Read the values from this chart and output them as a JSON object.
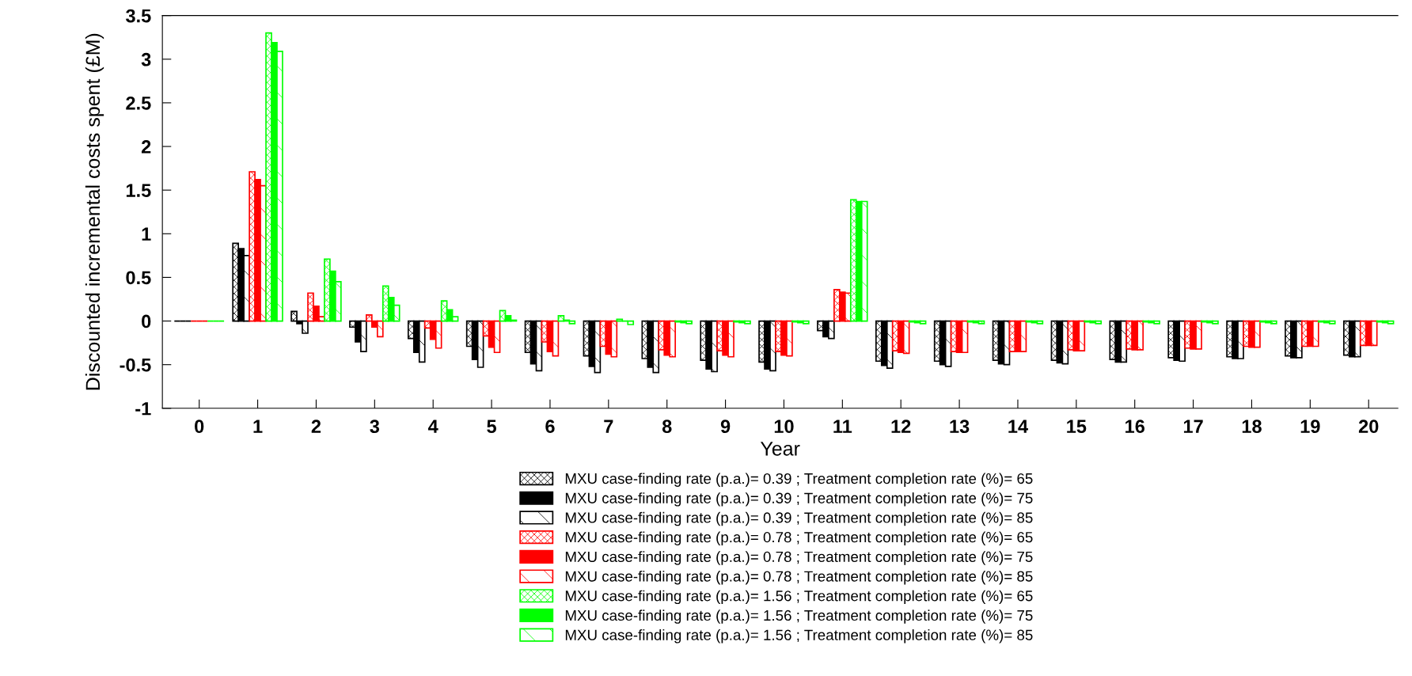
{
  "chart_data": {
    "type": "bar",
    "xlabel": "Year",
    "ylabel": "Discounted incremental costs spent (£M)",
    "categories": [
      "0",
      "1",
      "2",
      "3",
      "4",
      "5",
      "6",
      "7",
      "8",
      "9",
      "10",
      "11",
      "12",
      "13",
      "14",
      "15",
      "16",
      "17",
      "18",
      "19",
      "20"
    ],
    "ylim": [
      -1,
      3.5
    ],
    "yticks": [
      {
        "value": -1,
        "label": "-1"
      },
      {
        "value": -0.5,
        "label": "-0.5"
      },
      0,
      0.5,
      1,
      1.5,
      2,
      2.5,
      3,
      3.5
    ],
    "grid": false,
    "legend": "bottom",
    "series": [
      {
        "name": "MXU case-finding rate (p.a.)= 0.39 ; Treatment completion rate (%)= 65",
        "color": "#000000",
        "values": [
          0,
          0.89,
          0.11,
          -0.07,
          -0.2,
          -0.29,
          -0.36,
          -0.4,
          -0.43,
          -0.45,
          -0.47,
          -0.11,
          -0.46,
          -0.46,
          -0.45,
          -0.45,
          -0.44,
          -0.42,
          -0.41,
          -0.4,
          -0.39
        ]
      },
      {
        "name": "MXU case-finding rate (p.a.)= 0.39 ; Treatment completion rate (%)= 75",
        "color": "#000000",
        "values": [
          0,
          0.83,
          -0.03,
          -0.24,
          -0.36,
          -0.44,
          -0.49,
          -0.52,
          -0.53,
          -0.55,
          -0.55,
          -0.18,
          -0.51,
          -0.5,
          -0.49,
          -0.48,
          -0.47,
          -0.45,
          -0.43,
          -0.42,
          -0.41
        ]
      },
      {
        "name": "MXU case-finding rate (p.a.)= 0.39 ; Treatment completion rate (%)= 85",
        "color": "#000000",
        "values": [
          0,
          0.75,
          -0.14,
          -0.35,
          -0.47,
          -0.53,
          -0.57,
          -0.59,
          -0.59,
          -0.58,
          -0.57,
          -0.2,
          -0.54,
          -0.52,
          -0.5,
          -0.49,
          -0.47,
          -0.46,
          -0.43,
          -0.42,
          -0.41
        ]
      },
      {
        "name": "MXU case-finding rate (p.a.)= 0.78 ; Treatment completion rate (%)= 65",
        "color": "#ff0000",
        "values": [
          0,
          1.71,
          0.32,
          0.07,
          -0.08,
          -0.17,
          -0.24,
          -0.29,
          -0.33,
          -0.34,
          -0.35,
          0.36,
          -0.34,
          -0.35,
          -0.35,
          -0.33,
          -0.32,
          -0.31,
          -0.29,
          -0.29,
          -0.28
        ]
      },
      {
        "name": "MXU case-finding rate (p.a.)= 0.78 ; Treatment completion rate (%)= 75",
        "color": "#ff0000",
        "values": [
          0,
          1.62,
          0.17,
          -0.07,
          -0.21,
          -0.3,
          -0.35,
          -0.38,
          -0.39,
          -0.39,
          -0.39,
          0.33,
          -0.36,
          -0.36,
          -0.35,
          -0.34,
          -0.33,
          -0.32,
          -0.3,
          -0.29,
          -0.28
        ]
      },
      {
        "name": "MXU case-finding rate (p.a.)= 0.78 ; Treatment completion rate (%)= 85",
        "color": "#ff0000",
        "values": [
          0,
          1.55,
          0.05,
          -0.18,
          -0.31,
          -0.36,
          -0.4,
          -0.41,
          -0.41,
          -0.41,
          -0.4,
          0.32,
          -0.37,
          -0.36,
          -0.35,
          -0.34,
          -0.33,
          -0.32,
          -0.3,
          -0.29,
          -0.28
        ]
      },
      {
        "name": "MXU case-finding rate (p.a.)= 1.56 ; Treatment completion rate (%)= 65",
        "color": "#00ff00",
        "values": [
          0,
          3.3,
          0.71,
          0.4,
          0.23,
          0.12,
          0.06,
          0.02,
          -0.01,
          -0.01,
          -0.01,
          1.39,
          -0.01,
          -0.01,
          -0.01,
          -0.01,
          -0.01,
          -0.01,
          -0.01,
          -0.01,
          -0.01
        ]
      },
      {
        "name": "MXU case-finding rate (p.a.)= 1.56 ; Treatment completion rate (%)= 75",
        "color": "#00ff00",
        "values": [
          0,
          3.19,
          0.57,
          0.27,
          0.13,
          0.06,
          0.01,
          0.0,
          -0.02,
          -0.02,
          -0.02,
          1.37,
          -0.02,
          -0.02,
          -0.02,
          -0.02,
          -0.02,
          -0.02,
          -0.02,
          -0.02,
          -0.02
        ]
      },
      {
        "name": "MXU case-finding rate (p.a.)= 1.56 ; Treatment completion rate (%)= 85",
        "color": "#00ff00",
        "values": [
          0,
          3.09,
          0.45,
          0.18,
          0.05,
          0.01,
          -0.03,
          -0.04,
          -0.03,
          -0.03,
          -0.03,
          1.37,
          -0.03,
          -0.03,
          -0.03,
          -0.03,
          -0.03,
          -0.03,
          -0.03,
          -0.03,
          -0.03
        ]
      }
    ]
  }
}
